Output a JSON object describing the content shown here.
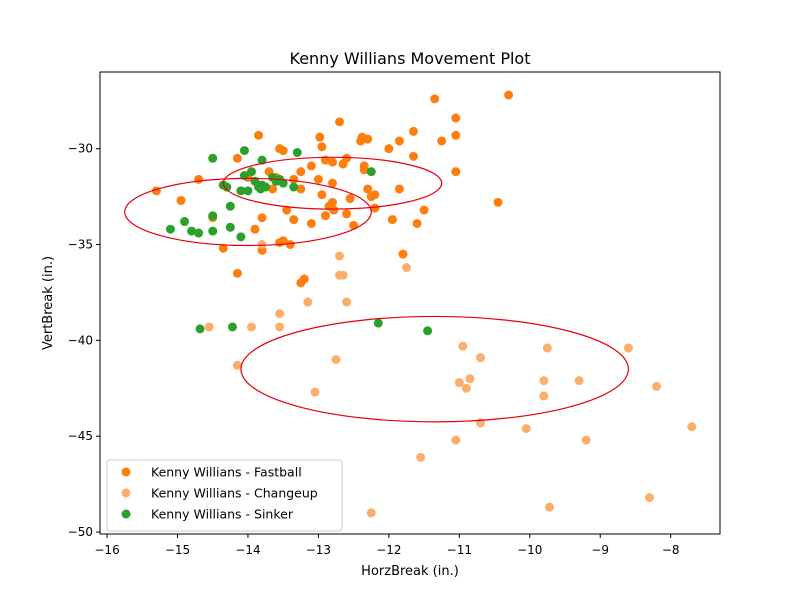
{
  "chart_data": {
    "type": "scatter",
    "title": "Kenny Willians Movement Plot",
    "xlabel": "HorzBreak (in.)",
    "ylabel": "VertBreak (in.)",
    "xlim": [
      -16.1,
      -7.3
    ],
    "ylim": [
      -50.1,
      -26.0
    ],
    "x_ticks": [
      -16,
      -15,
      -14,
      -13,
      -12,
      -11,
      -10,
      -9,
      -8
    ],
    "x_tick_labels": [
      "−16",
      "−15",
      "−14",
      "−13",
      "−12",
      "−11",
      "−10",
      "−9",
      "−8"
    ],
    "y_ticks": [
      -50,
      -45,
      -40,
      -35,
      -30
    ],
    "y_tick_labels": [
      "−50",
      "−45",
      "−40",
      "−35",
      "−30"
    ],
    "grid": false,
    "legend_position": "lower-left",
    "series": [
      {
        "name": "Kenny Willians - Fastball",
        "color": "#ff7f0e",
        "points": [
          [
            -15.3,
            -32.2
          ],
          [
            -14.95,
            -32.7
          ],
          [
            -14.7,
            -31.6
          ],
          [
            -14.5,
            -33.6
          ],
          [
            -14.35,
            -35.2
          ],
          [
            -14.35,
            -31.9
          ],
          [
            -14.15,
            -30.5
          ],
          [
            -14.15,
            -36.5
          ],
          [
            -14.0,
            -31.5
          ],
          [
            -13.9,
            -34.2
          ],
          [
            -13.85,
            -29.3
          ],
          [
            -13.8,
            -33.6
          ],
          [
            -13.8,
            -35.3
          ],
          [
            -13.75,
            -32.0
          ],
          [
            -13.7,
            -31.2
          ],
          [
            -13.65,
            -32.1
          ],
          [
            -13.6,
            -31.5
          ],
          [
            -13.55,
            -30.0
          ],
          [
            -13.55,
            -34.9
          ],
          [
            -13.5,
            -30.1
          ],
          [
            -13.5,
            -34.8
          ],
          [
            -13.45,
            -33.2
          ],
          [
            -13.4,
            -35.0
          ],
          [
            -13.35,
            -31.6
          ],
          [
            -13.35,
            -33.7
          ],
          [
            -13.25,
            -32.1
          ],
          [
            -13.25,
            -31.2
          ],
          [
            -13.25,
            -37.0
          ],
          [
            -13.2,
            -36.8
          ],
          [
            -13.1,
            -30.9
          ],
          [
            -13.1,
            -33.9
          ],
          [
            -13.0,
            -31.6
          ],
          [
            -12.98,
            -29.4
          ],
          [
            -12.95,
            -29.9
          ],
          [
            -12.95,
            -32.4
          ],
          [
            -12.9,
            -30.6
          ],
          [
            -12.9,
            -33.5
          ],
          [
            -12.85,
            -33.0
          ],
          [
            -12.8,
            -30.7
          ],
          [
            -12.8,
            -31.8
          ],
          [
            -12.8,
            -32.8
          ],
          [
            -12.78,
            -33.2
          ],
          [
            -12.7,
            -28.6
          ],
          [
            -12.65,
            -30.8
          ],
          [
            -12.6,
            -30.5
          ],
          [
            -12.6,
            -33.4
          ],
          [
            -12.55,
            -32.6
          ],
          [
            -12.5,
            -34.0
          ],
          [
            -12.4,
            -29.6
          ],
          [
            -12.38,
            -29.4
          ],
          [
            -12.35,
            -30.9
          ],
          [
            -12.35,
            -31.1
          ],
          [
            -12.3,
            -32.1
          ],
          [
            -12.3,
            -29.5
          ],
          [
            -12.25,
            -32.5
          ],
          [
            -12.2,
            -32.4
          ],
          [
            -12.2,
            -33.1
          ],
          [
            -12.0,
            -30.0
          ],
          [
            -11.95,
            -33.7
          ],
          [
            -11.85,
            -29.6
          ],
          [
            -11.85,
            -32.1
          ],
          [
            -11.8,
            -35.5
          ],
          [
            -11.65,
            -30.4
          ],
          [
            -11.65,
            -29.1
          ],
          [
            -11.6,
            -33.9
          ],
          [
            -11.5,
            -33.2
          ],
          [
            -11.35,
            -27.4
          ],
          [
            -11.25,
            -29.6
          ],
          [
            -11.05,
            -29.3
          ],
          [
            -11.05,
            -31.2
          ],
          [
            -11.05,
            -28.4
          ],
          [
            -10.45,
            -32.8
          ],
          [
            -10.3,
            -27.2
          ]
        ]
      },
      {
        "name": "Kenny Willians - Changeup",
        "color": "#fdae6b",
        "points": [
          [
            -14.55,
            -39.3
          ],
          [
            -14.15,
            -41.3
          ],
          [
            -13.95,
            -39.3
          ],
          [
            -13.8,
            -35.0
          ],
          [
            -13.55,
            -38.6
          ],
          [
            -13.55,
            -39.3
          ],
          [
            -13.15,
            -38.0
          ],
          [
            -13.05,
            -42.7
          ],
          [
            -12.75,
            -41.0
          ],
          [
            -12.7,
            -35.6
          ],
          [
            -12.7,
            -36.6
          ],
          [
            -12.65,
            -36.6
          ],
          [
            -12.6,
            -38.0
          ],
          [
            -12.25,
            -49.0
          ],
          [
            -11.75,
            -36.2
          ],
          [
            -11.55,
            -46.1
          ],
          [
            -11.05,
            -45.2
          ],
          [
            -11.0,
            -42.2
          ],
          [
            -10.95,
            -40.3
          ],
          [
            -10.9,
            -42.5
          ],
          [
            -10.85,
            -42.0
          ],
          [
            -10.7,
            -40.9
          ],
          [
            -10.7,
            -44.3
          ],
          [
            -10.05,
            -44.6
          ],
          [
            -9.8,
            -42.9
          ],
          [
            -9.8,
            -42.1
          ],
          [
            -9.75,
            -40.4
          ],
          [
            -9.72,
            -48.7
          ],
          [
            -9.3,
            -42.1
          ],
          [
            -9.2,
            -45.2
          ],
          [
            -8.6,
            -40.4
          ],
          [
            -8.3,
            -48.2
          ],
          [
            -8.2,
            -42.4
          ],
          [
            -7.7,
            -44.5
          ]
        ]
      },
      {
        "name": "Kenny Willians - Sinker",
        "color": "#2ca02c",
        "points": [
          [
            -15.1,
            -34.2
          ],
          [
            -14.9,
            -33.8
          ],
          [
            -14.8,
            -34.3
          ],
          [
            -14.7,
            -34.4
          ],
          [
            -14.68,
            -39.4
          ],
          [
            -14.5,
            -30.5
          ],
          [
            -14.5,
            -33.5
          ],
          [
            -14.5,
            -34.3
          ],
          [
            -14.35,
            -31.9
          ],
          [
            -14.3,
            -32.0
          ],
          [
            -14.25,
            -33.0
          ],
          [
            -14.25,
            -34.1
          ],
          [
            -14.22,
            -39.3
          ],
          [
            -14.1,
            -32.2
          ],
          [
            -14.1,
            -34.6
          ],
          [
            -14.05,
            -30.1
          ],
          [
            -14.05,
            -31.4
          ],
          [
            -14.0,
            -32.2
          ],
          [
            -13.95,
            -31.2
          ],
          [
            -13.9,
            -31.7
          ],
          [
            -13.85,
            -31.9
          ],
          [
            -13.85,
            -32.0
          ],
          [
            -13.82,
            -32.1
          ],
          [
            -13.8,
            -30.6
          ],
          [
            -13.8,
            -31.9
          ],
          [
            -13.75,
            -32.0
          ],
          [
            -13.65,
            -31.5
          ],
          [
            -13.6,
            -31.7
          ],
          [
            -13.55,
            -31.6
          ],
          [
            -13.5,
            -31.8
          ],
          [
            -13.35,
            -32.0
          ],
          [
            -13.3,
            -30.2
          ],
          [
            -12.25,
            -31.2
          ],
          [
            -12.15,
            -39.1
          ],
          [
            -11.45,
            -39.5
          ]
        ]
      }
    ],
    "ellipses": [
      {
        "center": [
          -14.0,
          -33.3
        ],
        "width": 3.5,
        "height": 3.5,
        "color": "#e8000b"
      },
      {
        "center": [
          -12.8,
          -31.8
        ],
        "width": 3.1,
        "height": 2.7,
        "color": "#e8000b"
      },
      {
        "center": [
          -11.35,
          -41.5
        ],
        "width": 5.5,
        "height": 5.5,
        "color": "#e8000b"
      }
    ]
  }
}
